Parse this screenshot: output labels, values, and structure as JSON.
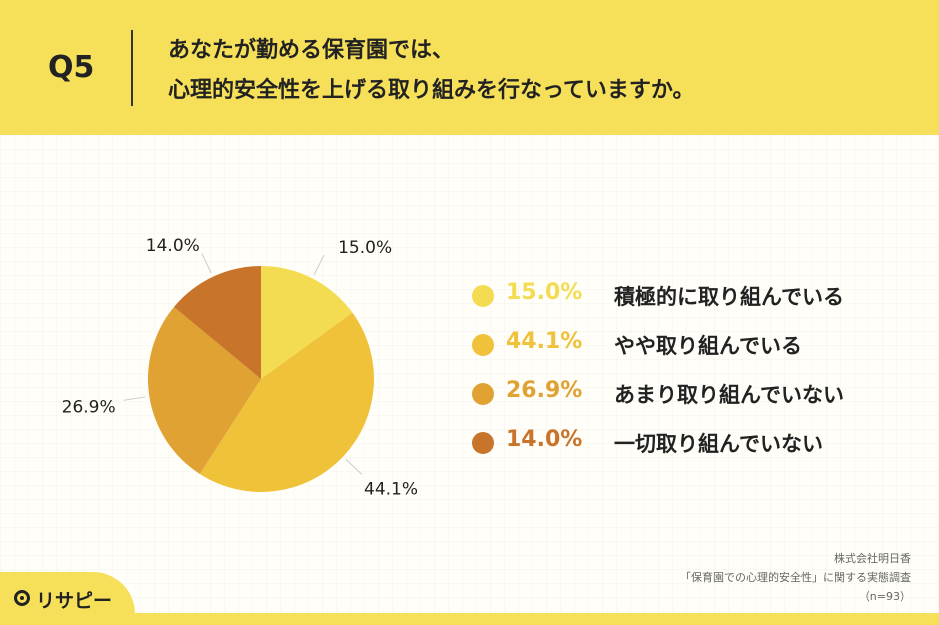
{
  "header": {
    "question": "Q5",
    "title_line1": "あなたが勤める保育園では、",
    "title_line2": "心理的安全性を上げる取り組みを行なっていますか。"
  },
  "chart_data": {
    "type": "pie",
    "slices": [
      {
        "label": "積極的に取り組んでいる",
        "value": 15.0,
        "display": "15.0%",
        "color": "#f4dc52"
      },
      {
        "label": "やや取り組んでいる",
        "value": 44.1,
        "display": "44.1%",
        "color": "#f0c23a"
      },
      {
        "label": "あまり取り組んでいない",
        "value": 26.9,
        "display": "26.9%",
        "color": "#dfa233"
      },
      {
        "label": "一切取り組んでいない",
        "value": 14.0,
        "display": "14.0%",
        "color": "#c8742a"
      }
    ],
    "start": "12 o'clock",
    "direction": "clockwise",
    "legend_position": "right"
  },
  "source": {
    "company": "株式会社明日香",
    "survey": "「保育園での心理的安全性」に関する実態調査",
    "sample": "（n=93）"
  },
  "brand": {
    "name": "リサピー"
  }
}
